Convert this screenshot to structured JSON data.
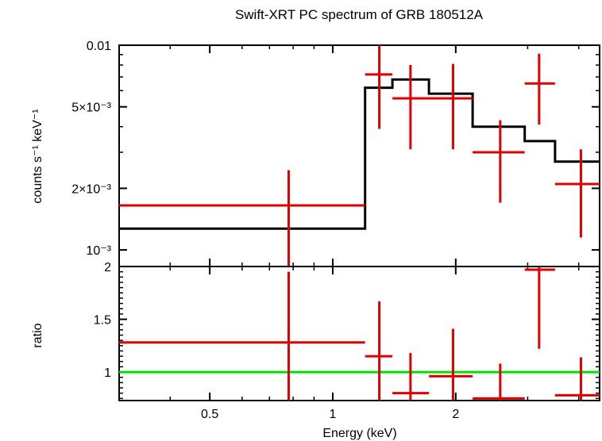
{
  "chart_data": [
    {
      "type": "line",
      "title": "Swift-XRT PC spectrum of GRB 180512A",
      "xlabel": "Energy (keV)",
      "ylabel": "counts s⁻¹ keV⁻¹",
      "xscale": "log",
      "yscale": "log",
      "xlim": [
        0.3,
        4.5
      ],
      "ylim": [
        0.00083,
        0.01
      ],
      "yticks": [
        {
          "value": 0.01,
          "label": "0.01"
        },
        {
          "value": 0.005,
          "label": "5×10⁻³"
        },
        {
          "value": 0.002,
          "label": "2×10⁻³"
        },
        {
          "value": 0.001,
          "label": "10⁻³"
        }
      ],
      "series": [
        {
          "kind": "step-model",
          "color": "#000000",
          "steps": [
            {
              "x0": 0.3,
              "x1": 1.2,
              "y": 0.00127
            },
            {
              "x0": 1.2,
              "x1": 1.4,
              "y": 0.0062
            },
            {
              "x0": 1.4,
              "x1": 1.72,
              "y": 0.0068
            },
            {
              "x0": 1.72,
              "x1": 2.2,
              "y": 0.0058
            },
            {
              "x0": 2.2,
              "x1": 2.95,
              "y": 0.004
            },
            {
              "x0": 2.95,
              "x1": 3.5,
              "y": 0.0034
            },
            {
              "x0": 3.5,
              "x1": 4.5,
              "y": 0.0027
            }
          ]
        },
        {
          "kind": "data-crosses",
          "color": "#e00000",
          "points": [
            {
              "x": 0.78,
              "xlo": 0.3,
              "xhi": 1.2,
              "y": 0.00165,
              "ylo": 0.00083,
              "yhi": 0.00245
            },
            {
              "x": 1.3,
              "xlo": 1.2,
              "xhi": 1.4,
              "y": 0.0072,
              "ylo": 0.0039,
              "yhi": 0.0102
            },
            {
              "x": 1.55,
              "xlo": 1.4,
              "xhi": 1.72,
              "y": 0.0055,
              "ylo": 0.0031,
              "yhi": 0.008
            },
            {
              "x": 1.97,
              "xlo": 1.72,
              "xhi": 2.2,
              "y": 0.0055,
              "ylo": 0.0031,
              "yhi": 0.0081
            },
            {
              "x": 2.57,
              "xlo": 2.2,
              "xhi": 2.95,
              "y": 0.003,
              "ylo": 0.0017,
              "yhi": 0.0043
            },
            {
              "x": 3.2,
              "xlo": 2.95,
              "xhi": 3.5,
              "y": 0.0065,
              "ylo": 0.0041,
              "yhi": 0.0091
            },
            {
              "x": 4.05,
              "xlo": 3.5,
              "xhi": 4.5,
              "y": 0.0021,
              "ylo": 0.00115,
              "yhi": 0.0031
            }
          ]
        }
      ]
    },
    {
      "type": "line",
      "xlabel": "Energy (keV)",
      "ylabel": "ratio",
      "xscale": "log",
      "xlim": [
        0.3,
        4.5
      ],
      "ylim": [
        0.73,
        2.0
      ],
      "yticks": [
        {
          "value": 2,
          "label": "2"
        },
        {
          "value": 1.5,
          "label": "1.5"
        },
        {
          "value": 1,
          "label": "1"
        }
      ],
      "xticks": [
        {
          "value": 0.5,
          "label": "0.5"
        },
        {
          "value": 1,
          "label": "1"
        },
        {
          "value": 2,
          "label": "2"
        }
      ],
      "series": [
        {
          "kind": "reference-line",
          "color": "#00e000",
          "y": 1
        },
        {
          "kind": "data-crosses",
          "color": "#e00000",
          "points": [
            {
              "x": 0.78,
              "xlo": 0.3,
              "xhi": 1.2,
              "y": 1.28,
              "ylo": 0.73,
              "yhi": 1.95
            },
            {
              "x": 1.3,
              "xlo": 1.2,
              "xhi": 1.4,
              "y": 1.15,
              "ylo": 0.73,
              "yhi": 1.67
            },
            {
              "x": 1.55,
              "xlo": 1.4,
              "xhi": 1.72,
              "y": 0.8,
              "ylo": 0.73,
              "yhi": 1.18
            },
            {
              "x": 1.97,
              "xlo": 1.72,
              "xhi": 2.2,
              "y": 0.96,
              "ylo": 0.73,
              "yhi": 1.41
            },
            {
              "x": 2.57,
              "xlo": 2.2,
              "xhi": 2.95,
              "y": 0.75,
              "ylo": 0.73,
              "yhi": 1.08
            },
            {
              "x": 3.2,
              "xlo": 2.95,
              "xhi": 3.5,
              "y": 1.97,
              "ylo": 1.22,
              "yhi": 2.0
            },
            {
              "x": 4.05,
              "xlo": 3.5,
              "xhi": 4.5,
              "y": 0.78,
              "ylo": 0.73,
              "yhi": 1.14
            }
          ]
        }
      ]
    }
  ]
}
